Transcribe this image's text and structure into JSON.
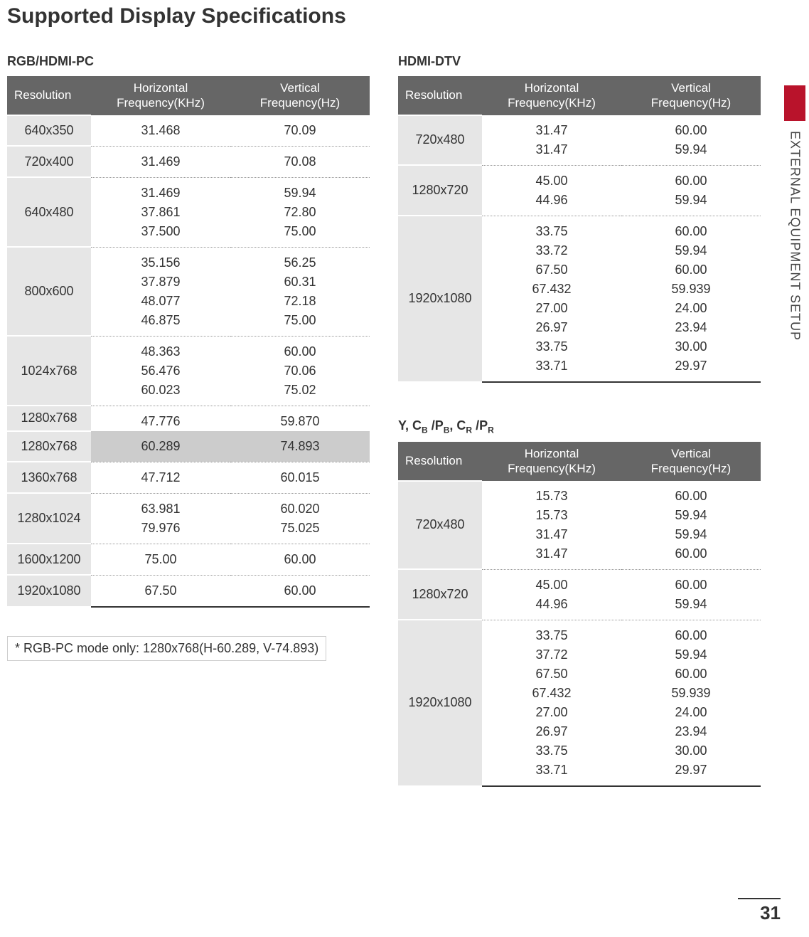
{
  "page": {
    "title": "Supported Display Specifications",
    "section_label": "EXTERNAL EQUIPMENT SETUP",
    "page_number": "31",
    "side_marker_color": "#b9132b"
  },
  "headers": {
    "resolution": "Resolution",
    "hfreq": "Horizontal\nFrequency(KHz)",
    "vfreq": "Vertical\nFrequency(Hz)"
  },
  "footnote": "* RGB-PC mode only: 1280x768(H-60.289, V-74.893)",
  "rgb_hdmi_pc": {
    "title": "RGB/HDMI-PC",
    "rows": [
      {
        "res": "640x350",
        "h": "31.468",
        "v": "70.09"
      },
      {
        "res": "720x400",
        "h": "31.469",
        "v": "70.08"
      },
      {
        "res": "640x480",
        "h": "31.469\n37.861\n37.500",
        "v": "59.94\n72.80\n75.00"
      },
      {
        "res": "800x600",
        "h": "35.156\n37.879\n48.077\n46.875",
        "v": "56.25\n60.31\n72.18\n75.00"
      },
      {
        "res": "1024x768",
        "h": "48.363\n56.476\n60.023",
        "v": "60.00\n70.06\n75.02"
      },
      {
        "res": "1280x768",
        "h": "47.776",
        "v": "59.870",
        "nobreak": true
      },
      {
        "res": "1280x768",
        "h": "60.289",
        "v": "74.893",
        "highlight": true
      },
      {
        "res": "1360x768",
        "h": "47.712",
        "v": "60.015"
      },
      {
        "res": "1280x1024",
        "h": "63.981\n79.976",
        "v": "60.020\n75.025"
      },
      {
        "res": "1600x1200",
        "h": "75.00",
        "v": "60.00"
      },
      {
        "res": "1920x1080",
        "h": "67.50",
        "v": "60.00"
      }
    ]
  },
  "hdmi_dtv": {
    "title": "HDMI-DTV",
    "rows": [
      {
        "res": "720x480",
        "h": "31.47\n31.47",
        "v": "60.00\n59.94"
      },
      {
        "res": "1280x720",
        "h": "45.00\n44.96",
        "v": "60.00\n59.94"
      },
      {
        "res": "1920x1080",
        "h": "33.75\n33.72\n67.50\n67.432\n27.00\n26.97\n33.75\n33.71",
        "v": "60.00\n59.94\n60.00\n59.939\n24.00\n23.94\n30.00\n29.97"
      }
    ]
  },
  "component": {
    "title_parts": {
      "pre": "Y, C",
      "b1": "B",
      "mid1": " /P",
      "b2": "B",
      "mid2": ", C",
      "r1": "R",
      "mid3": " /P",
      "r2": "R"
    },
    "rows": [
      {
        "res": "720x480",
        "h": "15.73\n15.73\n31.47\n31.47",
        "v": "60.00\n59.94\n59.94\n60.00"
      },
      {
        "res": "1280x720",
        "h": "45.00\n44.96",
        "v": "60.00\n59.94"
      },
      {
        "res": "1920x1080",
        "h": "33.75\n37.72\n67.50\n67.432\n27.00\n26.97\n33.75\n33.71",
        "v": "60.00\n59.94\n60.00\n59.939\n24.00\n23.94\n30.00\n29.97"
      }
    ]
  }
}
